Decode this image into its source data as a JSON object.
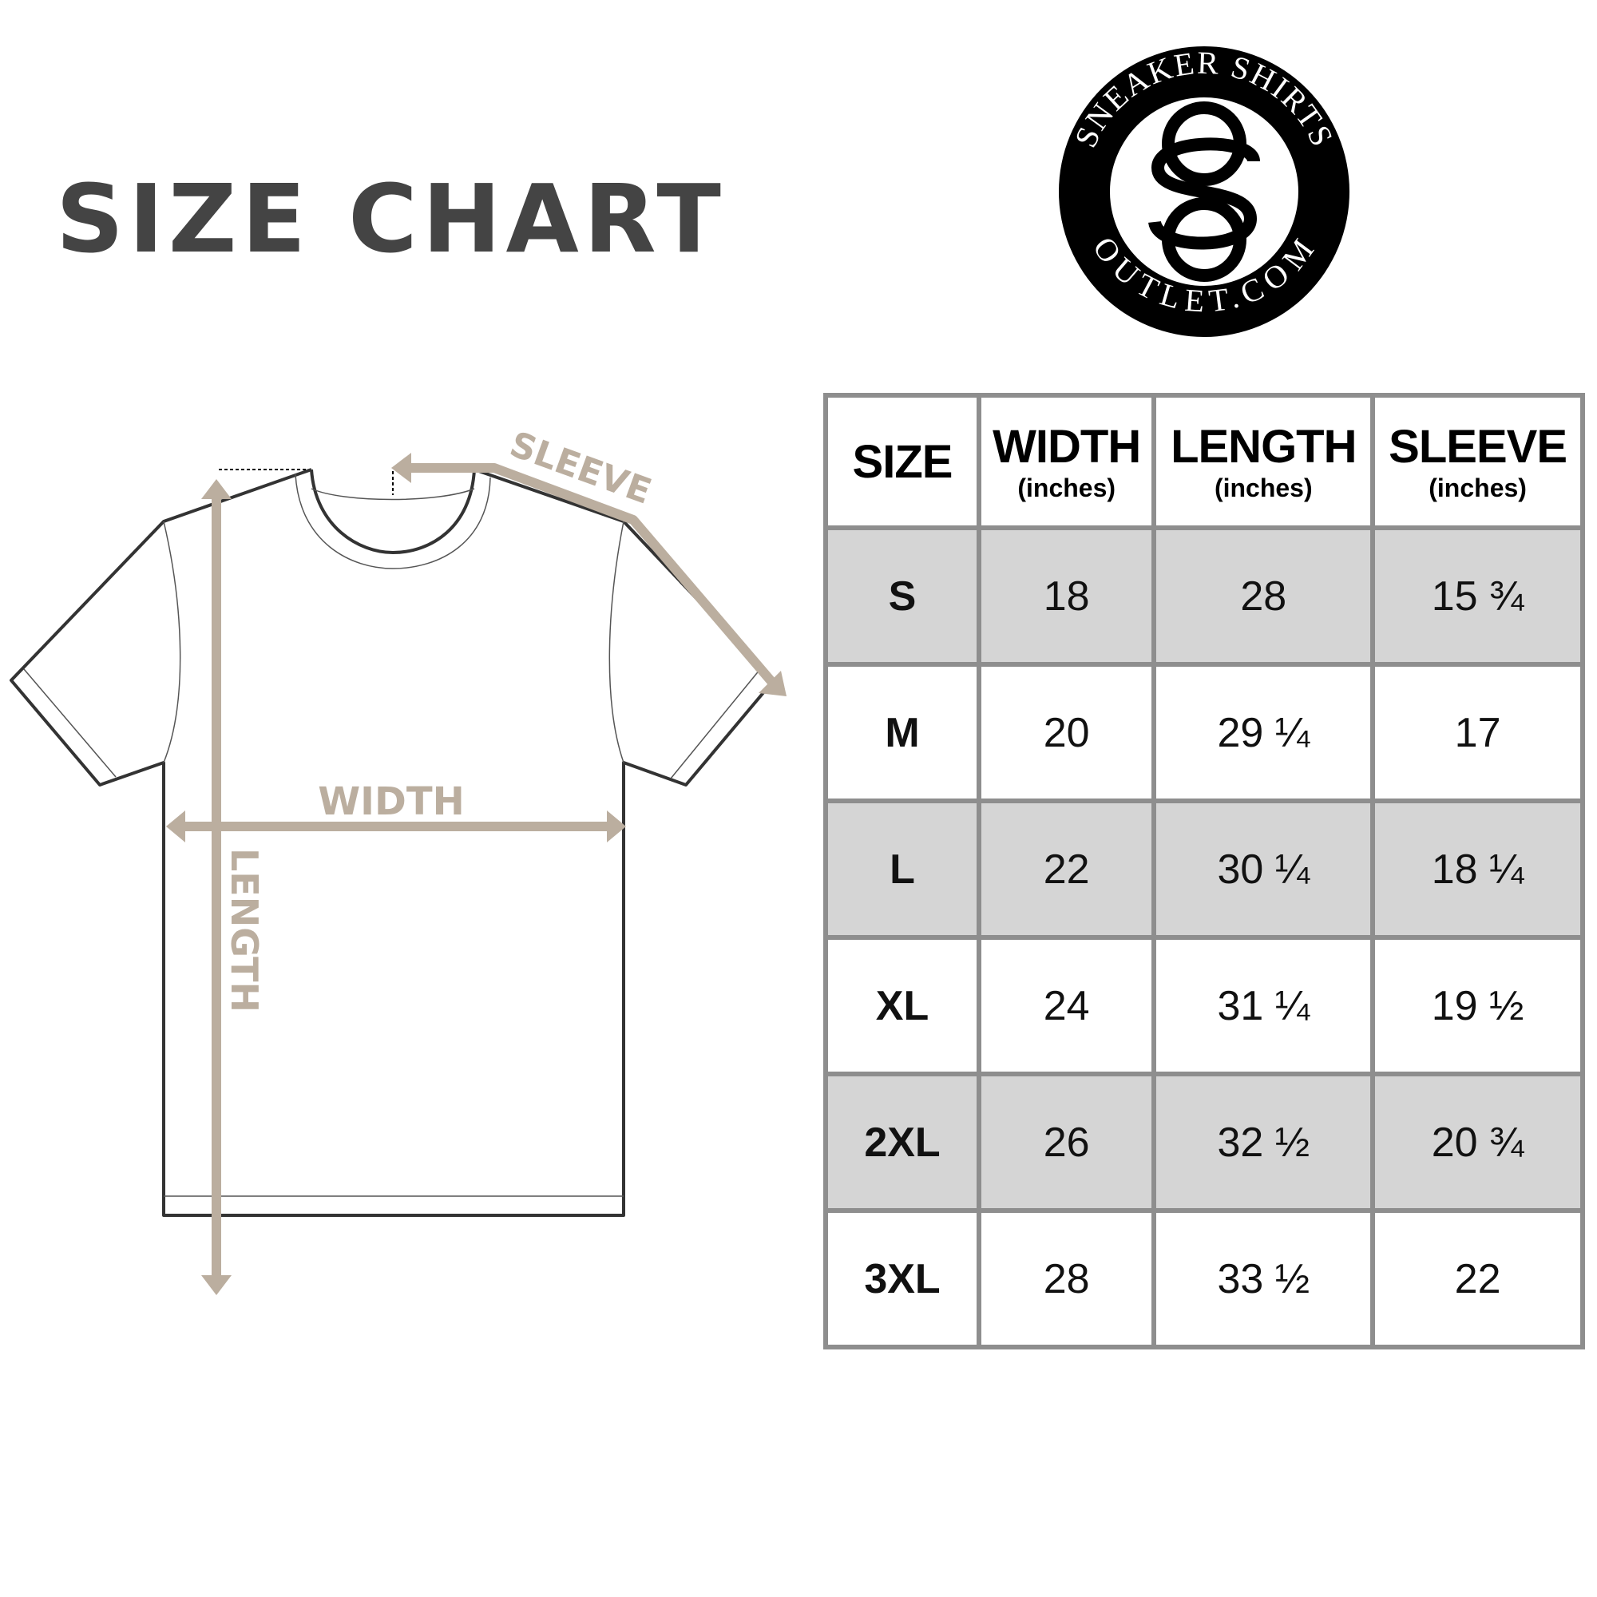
{
  "title": "SIZE CHART",
  "logo": {
    "top_text": "SNEAKER SHIRTS",
    "bottom_text": "OUTLET.COM",
    "monogram": "SO"
  },
  "diagram": {
    "sleeve_label": "SLEEVE",
    "width_label": "WIDTH",
    "length_label": "LENGTH",
    "accent_color": "#bbae9f"
  },
  "table": {
    "headers": [
      {
        "label": "SIZE",
        "unit": ""
      },
      {
        "label": "WIDTH",
        "unit": "(inches)"
      },
      {
        "label": "LENGTH",
        "unit": "(inches)"
      },
      {
        "label": "SLEEVE",
        "unit": "(inches)"
      }
    ],
    "rows": [
      [
        "S",
        "18",
        "28",
        "15 ¾"
      ],
      [
        "M",
        "20",
        "29 ¼",
        "17"
      ],
      [
        "L",
        "22",
        "30 ¼",
        "18 ¼"
      ],
      [
        "XL",
        "24",
        "31 ¼",
        "19 ½"
      ],
      [
        "2XL",
        "26",
        "32 ½",
        "20 ¾"
      ],
      [
        "3XL",
        "28",
        "33 ½",
        "22"
      ]
    ],
    "shade_color": "#d5d5d5",
    "border_color": "#8e8e8e"
  }
}
